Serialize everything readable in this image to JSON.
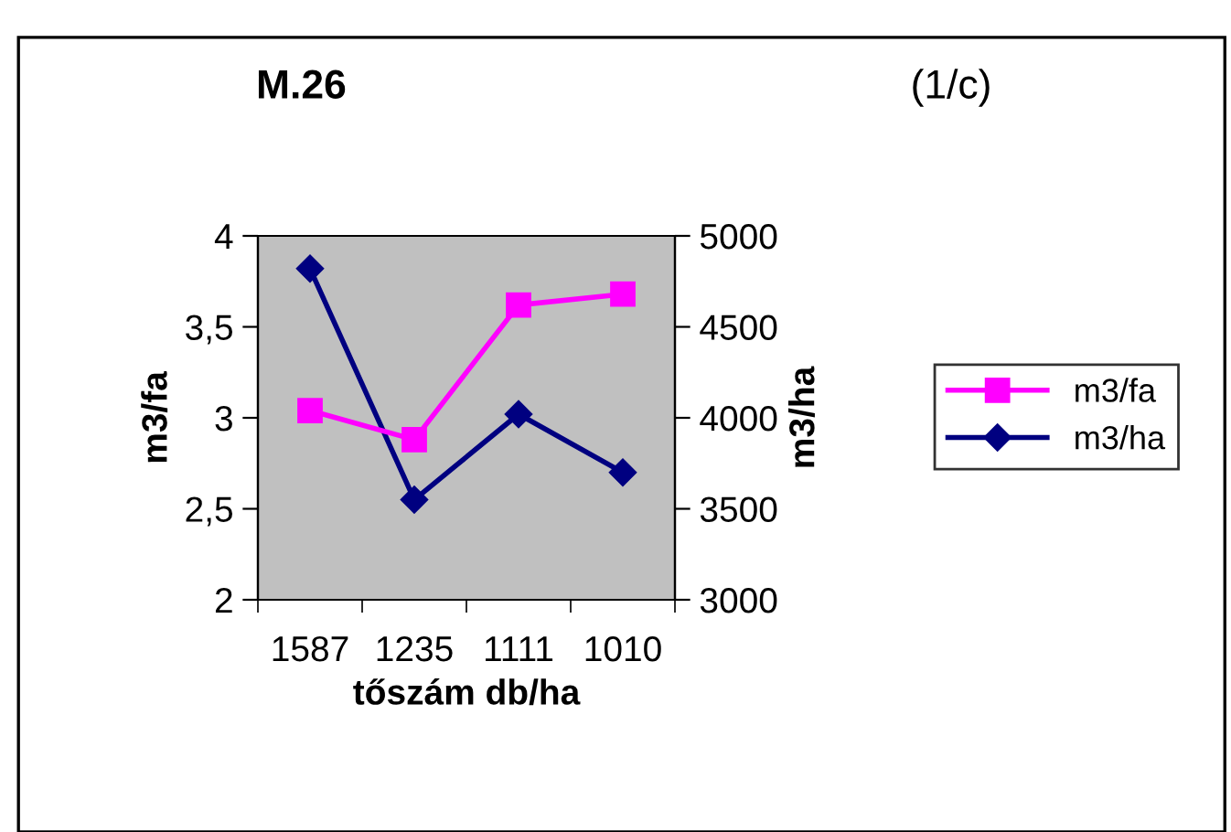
{
  "chart_data": {
    "type": "line",
    "title": "M.26",
    "annotations": [
      "(1/c)"
    ],
    "xlabel": "tőszám db/ha",
    "ylabel": "m3/fa",
    "y2label": "m3/ha",
    "categories": [
      "1587",
      "1235",
      "1111",
      "1010"
    ],
    "series": [
      {
        "name": "m3/fa",
        "color": "#ff00ff",
        "values": [
          3.04,
          2.88,
          3.62,
          3.68
        ],
        "marker": "square"
      },
      {
        "name": "m3/ha",
        "color": "#000080",
        "values": [
          4820,
          3550,
          4020,
          3700
        ],
        "marker": "diamond",
        "axis": "y2"
      }
    ],
    "ylim": [
      2,
      4
    ],
    "yticks": [
      2,
      {
        "value": 2.5,
        "label": "2,5"
      },
      3,
      {
        "value": 3.5,
        "label": "3,5"
      },
      4
    ],
    "y2lim": [
      3000,
      5000
    ],
    "y2ticks": [
      3000,
      3500,
      4000,
      4500,
      5000
    ],
    "grid": false,
    "legend": "right",
    "line_style": "solid"
  }
}
